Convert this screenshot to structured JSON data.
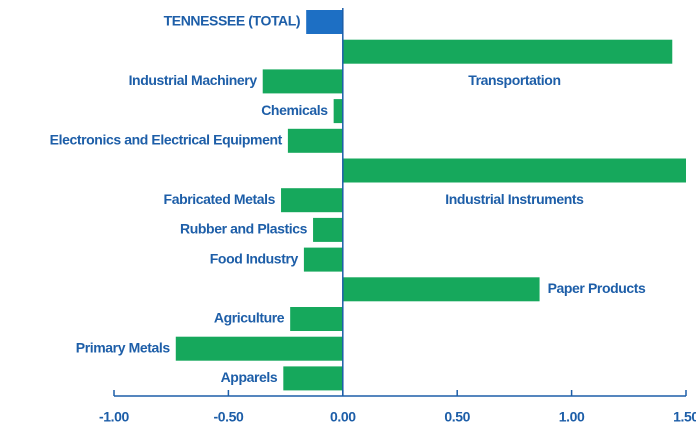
{
  "chart_data": {
    "type": "barh",
    "categories": [
      "TENNESSEE (TOTAL)",
      "Transportation",
      "Industrial Machinery",
      "Chemicals",
      "Electronics and Electrical Equipment",
      "Industrial Instruments",
      "Fabricated Metals",
      "Rubber and Plastics",
      "Food Industry",
      "Paper Products",
      "Agriculture",
      "Primary Metals",
      "Apparels"
    ],
    "values": [
      -0.16,
      1.44,
      -0.35,
      -0.04,
      -0.24,
      1.5,
      -0.27,
      -0.13,
      -0.17,
      0.86,
      -0.23,
      -0.73,
      -0.26
    ],
    "colors": [
      "#1d6fc4",
      "#16a85c",
      "#16a85c",
      "#16a85c",
      "#16a85c",
      "#16a85c",
      "#16a85c",
      "#16a85c",
      "#16a85c",
      "#16a85c",
      "#16a85c",
      "#16a85c",
      "#16a85c"
    ],
    "xlim": [
      -1,
      1.5
    ],
    "xticks": [
      {
        "value": -1,
        "label": "-1.00"
      },
      {
        "value": -0.5,
        "label": "-0.50"
      },
      {
        "value": 0,
        "label": "0.00"
      },
      {
        "value": 0.5,
        "label": "0.50"
      },
      {
        "value": 1,
        "label": "1.00"
      },
      {
        "value": 1.5,
        "label": "1.50"
      }
    ]
  }
}
